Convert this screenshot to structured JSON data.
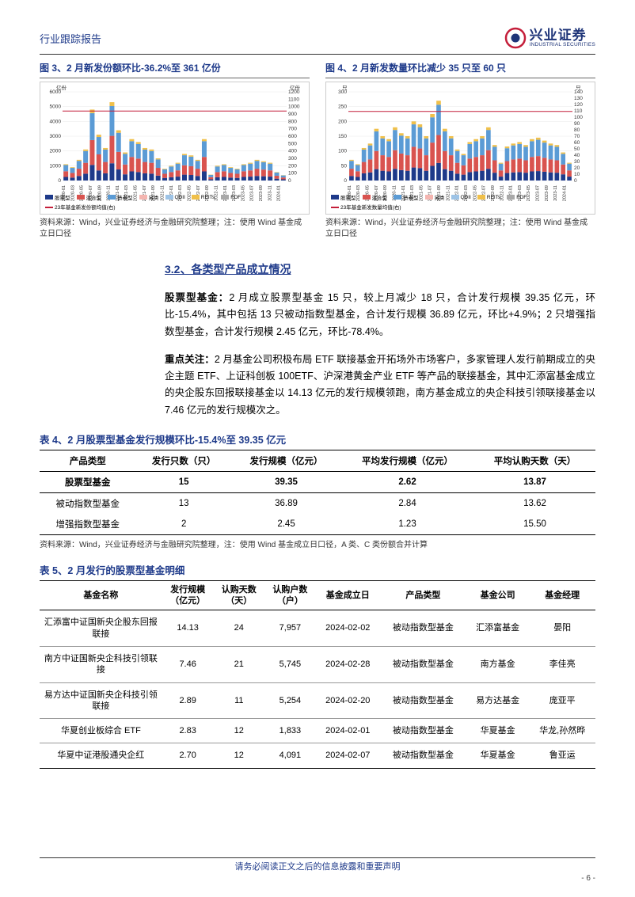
{
  "header": {
    "title": "行业跟踪报告",
    "brand_zh": "兴业证券",
    "brand_en": "INDUSTRIAL SECURITIES"
  },
  "logo": {
    "outer": "#c41e3a",
    "inner": "#1e3478"
  },
  "colors": {
    "blue": "#1e3a8a",
    "grid": "#e0e0e0"
  },
  "chart3": {
    "title": "图 3、2 月新发份额环比-36.2%至 361 亿份",
    "type": "stacked-bar+line",
    "y_left_unit": "亿份",
    "y_right_unit": "亿份",
    "y_left_lim": [
      0,
      6000
    ],
    "y_left_step": 1000,
    "y_right_lim": [
      0,
      1200
    ],
    "y_right_step": 100,
    "x": [
      "2020-01",
      "2020-03",
      "2020-05",
      "2020-07",
      "2020-09",
      "2020-11",
      "2021-01",
      "2021-03",
      "2021-05",
      "2021-07",
      "2021-09",
      "2021-11",
      "2022-01",
      "2022-03",
      "2022-05",
      "2022-07",
      "2022-09",
      "2022-11",
      "2023-01",
      "2023-03",
      "2023-05",
      "2023-07",
      "2023-09",
      "2023-11",
      "2024-01"
    ],
    "series": [
      {
        "name": "股票型",
        "color": "#1e3a8a"
      },
      {
        "name": "混合型",
        "color": "#d9534f"
      },
      {
        "name": "债券型",
        "color": "#5b9bd5"
      },
      {
        "name": "另类",
        "color": "#f4b5b0"
      },
      {
        "name": "QDII",
        "color": "#9dc3e6"
      },
      {
        "name": "REITs",
        "color": "#f0c04a"
      },
      {
        "name": "FOF",
        "color": "#a9a9a9"
      },
      {
        "name": "23年基金新发份额均值(右)",
        "color": "#c41e3a",
        "type": "line"
      }
    ],
    "stacked_totals": [
      1100,
      900,
      1400,
      2100,
      4800,
      3100,
      2200,
      5300,
      3400,
      1900,
      2800,
      2600,
      2200,
      2100,
      1500,
      800,
      1000,
      1200,
      1800,
      1700,
      1400,
      2800,
      400,
      1000,
      1100,
      900,
      800,
      1100,
      1200,
      1400,
      1300,
      1200,
      566,
      361
    ],
    "line_value": 940,
    "source": "资料来源：Wind，兴业证券经济与金融研究院整理；注：使用 Wind 基金成立日口径"
  },
  "chart4": {
    "title": "图 4、2 月新发数量环比减少 35 只至 60 只",
    "type": "stacked-bar+line",
    "y_left_unit": "只",
    "y_right_unit": "只",
    "y_left_lim": [
      0,
      300
    ],
    "y_left_step": 50,
    "y_right_lim": [
      0,
      140
    ],
    "y_right_step": 10,
    "x": [
      "2020-01",
      "2020-03",
      "2020-05",
      "2020-07",
      "2020-09",
      "2020-11",
      "2021-01",
      "2021-03",
      "2021-05",
      "2021-07",
      "2021-09",
      "2021-11",
      "2022-01",
      "2022-03",
      "2022-05",
      "2022-07",
      "2022-09",
      "2022-11",
      "2023-01",
      "2023-03",
      "2023-05",
      "2023-07",
      "2023-09",
      "2023-11",
      "2024-01"
    ],
    "series": [
      {
        "name": "股票型",
        "color": "#1e3a8a"
      },
      {
        "name": "混合型",
        "color": "#d9534f"
      },
      {
        "name": "债券型",
        "color": "#5b9bd5"
      },
      {
        "name": "另类",
        "color": "#f4b5b0"
      },
      {
        "name": "QDII",
        "color": "#9dc3e6"
      },
      {
        "name": "REITs",
        "color": "#f0c04a"
      },
      {
        "name": "FOF",
        "color": "#a9a9a9"
      },
      {
        "name": "23年基金新发数量均值(右)",
        "color": "#c41e3a",
        "type": "line"
      }
    ],
    "stacked_totals": [
      70,
      55,
      110,
      125,
      175,
      150,
      140,
      180,
      160,
      150,
      200,
      190,
      150,
      225,
      270,
      175,
      150,
      105,
      90,
      130,
      140,
      150,
      180,
      120,
      60,
      115,
      125,
      130,
      120,
      140,
      145,
      135,
      125,
      120,
      95,
      60
    ],
    "line_value": 109,
    "source": "资料来源：Wind，兴业证券经济与金融研究院整理；注：使用 Wind 基金成立日口径"
  },
  "section": {
    "title": "3.2、各类型产品成立情况"
  },
  "para1": "股票型基金：2 月成立股票型基金 15 只，较上月减少 18 只，合计发行规模 39.35 亿元，环比-15.4%，其中包括 13 只被动指数型基金，合计发行规模 36.89 亿元，环比+4.9%；2 只增强指数型基金，合计发行规模 2.45 亿元，环比-78.4%。",
  "para1_bold": "股票型基金：",
  "para2": "重点关注：2 月基金公司积极布局 ETF 联接基金开拓场外市场客户，多家管理人发行前期成立的央企主题 ETF、上证科创板 100ETF、沪深港黄金产业 ETF 等产品的联接基金，其中汇添富基金成立的央企股东回报联接基金以 14.13 亿元的发行规模领跑，南方基金成立的央企科技引领联接基金以 7.46 亿元的发行规模次之。",
  "para2_bold": "重点关注：",
  "table4": {
    "title": "表 4、2 月股票型基金发行规模环比-15.4%至 39.35 亿元",
    "columns": [
      "产品类型",
      "发行只数（只）",
      "发行规模（亿元）",
      "平均发行规模（亿元）",
      "平均认购天数（天）"
    ],
    "rows": [
      {
        "cells": [
          "股票型基金",
          "15",
          "39.35",
          "2.62",
          "13.87"
        ],
        "bold": true
      },
      {
        "cells": [
          "被动指数型基金",
          "13",
          "36.89",
          "2.84",
          "13.62"
        ],
        "bold": false
      },
      {
        "cells": [
          "增强指数型基金",
          "2",
          "2.45",
          "1.23",
          "15.50"
        ],
        "bold": false
      }
    ],
    "source": "资料来源：Wind，兴业证券经济与金融研究院整理，注：使用 Wind 基金成立日口径，A 类、C 类份额合并计算"
  },
  "table5": {
    "title": "表 5、2 月发行的股票型基金明细",
    "columns": [
      "基金名称",
      "发行规模\n（亿元）",
      "认购天数\n（天）",
      "认购户数\n（户）",
      "基金成立日",
      "产品类型",
      "基金公司",
      "基金经理"
    ],
    "rows": [
      [
        "汇添富中证国新央企股东回报联接",
        "14.13",
        "24",
        "7,957",
        "2024-02-02",
        "被动指数型基金",
        "汇添富基金",
        "晏阳"
      ],
      [
        "南方中证国新央企科技引领联接",
        "7.46",
        "21",
        "5,745",
        "2024-02-28",
        "被动指数型基金",
        "南方基金",
        "李佳亮"
      ],
      [
        "易方达中证国新央企科技引领联接",
        "2.89",
        "11",
        "5,254",
        "2024-02-20",
        "被动指数型基金",
        "易方达基金",
        "庞亚平"
      ],
      [
        "华夏创业板综合 ETF",
        "2.83",
        "12",
        "1,833",
        "2024-02-01",
        "被动指数型基金",
        "华夏基金",
        "华龙,孙然晔"
      ],
      [
        "华夏中证港股通央企红",
        "2.70",
        "12",
        "4,091",
        "2024-02-07",
        "被动指数型基金",
        "华夏基金",
        "鲁亚运"
      ]
    ]
  },
  "footer": {
    "text": "请务必阅读正文之后的信息披露和重要声明",
    "page": "- 6 -"
  }
}
